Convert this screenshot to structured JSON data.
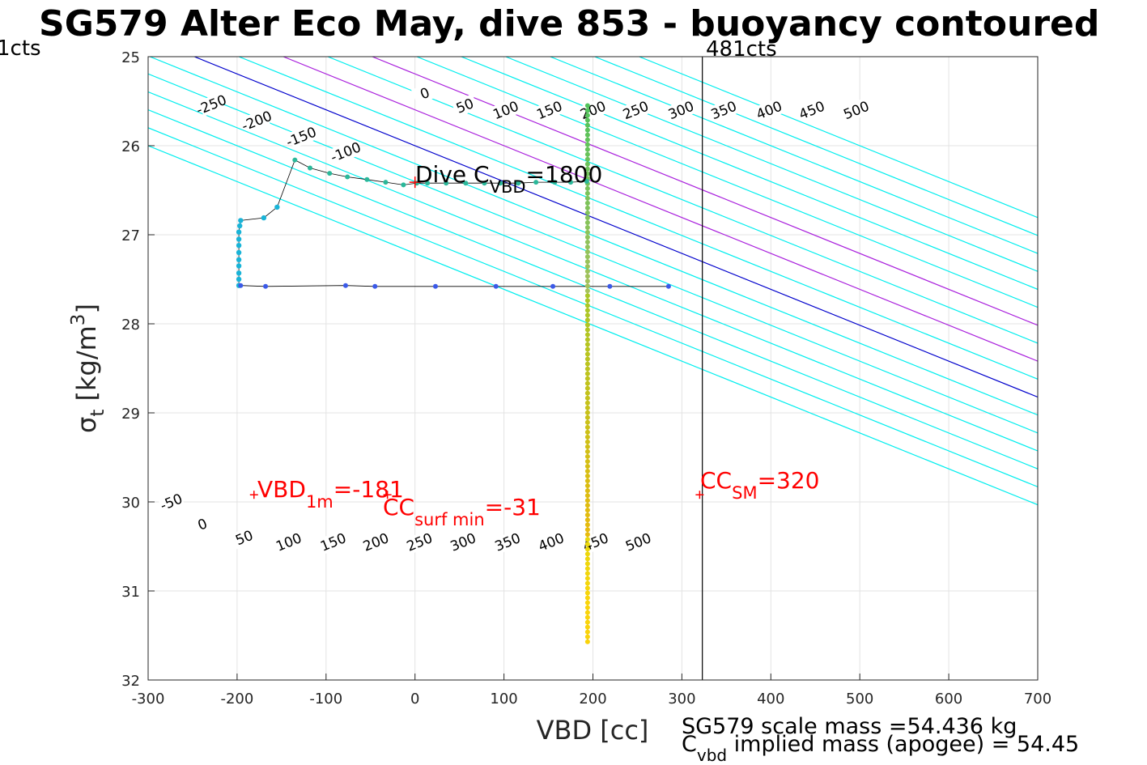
{
  "title": "SG579 Alter Eco May, dive 853 - buoyancy contoured",
  "chart_data": {
    "type": "scatter",
    "xlabel": "VBD [cc]",
    "ylabel_main": "σ",
    "ylabel_sub": "t",
    "ylabel_unit": " [kg/m",
    "ylabel_sup": "3",
    "ylabel_close": "]",
    "xlim": [
      -300,
      700
    ],
    "ylim": [
      25,
      32
    ],
    "y_reversed": true,
    "grid": true,
    "xticks": [
      -300,
      -200,
      -100,
      0,
      100,
      200,
      300,
      400,
      500,
      600,
      700
    ],
    "xtick_labels": [
      "-300",
      "-200",
      "-100",
      "0",
      "100",
      "200",
      "300",
      "400",
      "500",
      "600",
      "700"
    ],
    "yticks": [
      25,
      26,
      27,
      28,
      29,
      30,
      31,
      32
    ],
    "ytick_labels": [
      "25",
      "26",
      "27",
      "28",
      "29",
      "30",
      "31",
      "32"
    ],
    "buoyancy_contour_slope_cc_per_sigma": 248,
    "contours": {
      "values": [
        -300,
        -250,
        -200,
        -150,
        -100,
        -50,
        0,
        50,
        100,
        150,
        200,
        250,
        300,
        350,
        400,
        450,
        500
      ],
      "x_at_sigma25": [
        -548,
        -498,
        -448,
        -398,
        -348,
        -298,
        -248,
        -198,
        -148,
        -98,
        -48,
        2,
        52,
        102,
        152,
        202,
        252
      ],
      "zero_color": "#0000cc",
      "mid_color": "#aa22dd",
      "mid_values": [
        100,
        200
      ],
      "other_color": "#00eeee",
      "upper_labels": [
        {
          "text": "-250",
          "x": -229,
          "y": 25.54
        },
        {
          "text": "-200",
          "x": -178,
          "y": 25.72
        },
        {
          "text": "-150",
          "x": -128,
          "y": 25.9
        },
        {
          "text": "-100",
          "x": -78,
          "y": 26.07
        },
        {
          "text": "0",
          "x": 11,
          "y": 25.41
        },
        {
          "text": "50",
          "x": 56,
          "y": 25.55
        },
        {
          "text": "100",
          "x": 102,
          "y": 25.6
        },
        {
          "text": "150",
          "x": 151,
          "y": 25.6
        },
        {
          "text": "200",
          "x": 200,
          "y": 25.6
        },
        {
          "text": "250",
          "x": 248,
          "y": 25.6
        },
        {
          "text": "300",
          "x": 299,
          "y": 25.6
        },
        {
          "text": "350",
          "x": 347,
          "y": 25.6
        },
        {
          "text": "400",
          "x": 398,
          "y": 25.6
        },
        {
          "text": "450",
          "x": 446,
          "y": 25.6
        },
        {
          "text": "500",
          "x": 496,
          "y": 25.6
        }
      ],
      "lower_labels": [
        {
          "text": "-50",
          "x": -274,
          "y": 30.0
        },
        {
          "text": "0",
          "x": -239,
          "y": 30.25
        },
        {
          "text": "50",
          "x": -192,
          "y": 30.4
        },
        {
          "text": "100",
          "x": -142,
          "y": 30.45
        },
        {
          "text": "150",
          "x": -92,
          "y": 30.45
        },
        {
          "text": "200",
          "x": -44,
          "y": 30.45
        },
        {
          "text": "250",
          "x": 5,
          "y": 30.45
        },
        {
          "text": "300",
          "x": 54,
          "y": 30.45
        },
        {
          "text": "350",
          "x": 104,
          "y": 30.45
        },
        {
          "text": "400",
          "x": 153,
          "y": 30.45
        },
        {
          "text": "450",
          "x": 203,
          "y": 30.45
        },
        {
          "text": "500",
          "x": 251,
          "y": 30.45
        }
      ]
    },
    "series": [
      {
        "name": "dive profile",
        "descent_surface": {
          "x": [
            -135,
            -118,
            -96,
            -76,
            -54,
            -33,
            -13,
            2,
            14,
            35,
            57,
            78,
            96,
            116,
            136,
            157,
            175,
            193
          ],
          "y": [
            26.16,
            26.25,
            26.31,
            26.35,
            26.38,
            26.41,
            26.44,
            26.42,
            26.42,
            26.42,
            26.42,
            26.42,
            26.42,
            26.42,
            26.41,
            26.41,
            26.41,
            26.4
          ]
        },
        "descent_shallow": {
          "x": [
            -155,
            -170,
            -196,
            -197,
            -198,
            -198,
            -198,
            -198,
            -198,
            -198,
            -198,
            -198,
            -198
          ],
          "y": [
            26.69,
            26.81,
            26.84,
            26.9,
            26.97,
            27.05,
            27.12,
            27.2,
            27.28,
            27.35,
            27.43,
            27.5,
            27.57
          ]
        },
        "bottom_row": {
          "x": [
            -196,
            -168,
            -78,
            -45,
            23,
            91,
            155,
            219,
            285
          ],
          "y": [
            27.57,
            27.58,
            27.57,
            27.58,
            27.58,
            27.58,
            27.58,
            27.58,
            27.58
          ]
        },
        "vertical": {
          "x": 194,
          "y_start": 25.55,
          "y_end": 31.57
        }
      }
    ],
    "vlines": [
      {
        "x": 323,
        "label": "481cts"
      }
    ],
    "left_label": "1cts",
    "annotations": {
      "dive_cvbd": {
        "main": "Dive C",
        "sub": "VBD",
        "tail": "=1800",
        "x": 0,
        "y": 26.41
      },
      "vbd_1m": {
        "main": "VBD",
        "sub": "1m",
        "tail": "=-181",
        "x": -181,
        "y": 29.92
      },
      "cc_surf_min": {
        "main": "CC",
        "sub": "surf min",
        "tail": "=-31",
        "x": -31,
        "y": 29.92
      },
      "cc_sm": {
        "main": "CC",
        "sub": "SM",
        "tail": "=320",
        "x": 320,
        "y": 29.92
      }
    },
    "footer": {
      "line1": "SG579 scale mass =54.436 kg",
      "line2_main": "C",
      "line2_sub": "vbd",
      "line2_tail": " implied mass (apogee) = 54.45"
    }
  }
}
